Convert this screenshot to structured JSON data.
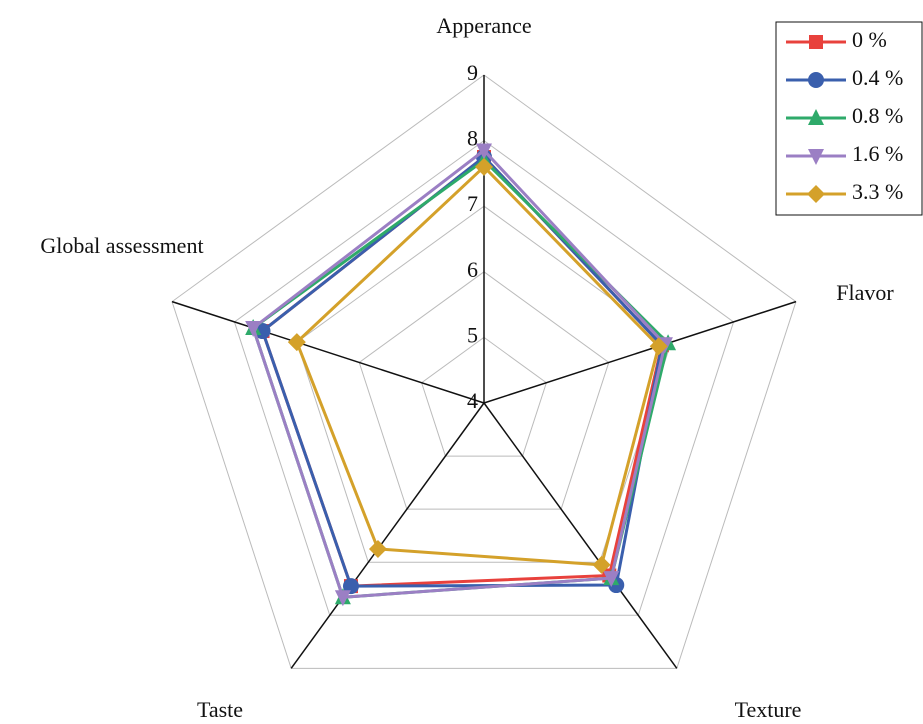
{
  "chart_data": {
    "type": "radar",
    "categories": [
      "Apperance",
      "Flavor",
      "Texture",
      "Taste",
      "Global assessment"
    ],
    "ylim": [
      4,
      9
    ],
    "yticks": [
      4,
      5,
      6,
      7,
      8,
      9
    ],
    "grid": true,
    "legend": "top-right",
    "series": [
      {
        "name": "0 %",
        "color": "#e8413c",
        "marker": "square",
        "values": [
          7.75,
          6.85,
          7.25,
          7.45,
          7.55
        ]
      },
      {
        "name": "0.4 %",
        "color": "#3a5fad",
        "marker": "circle",
        "values": [
          7.75,
          6.85,
          7.43,
          7.45,
          7.55
        ]
      },
      {
        "name": "0.8 %",
        "color": "#2eaa6a",
        "marker": "triangle-up",
        "values": [
          7.7,
          6.95,
          7.3,
          7.66,
          7.7
        ]
      },
      {
        "name": "1.6 %",
        "color": "#9b7fc4",
        "marker": "triangle-down",
        "values": [
          7.85,
          6.9,
          7.3,
          7.66,
          7.7
        ]
      },
      {
        "name": "3.3 %",
        "color": "#d4a12a",
        "marker": "diamond",
        "values": [
          7.6,
          6.8,
          7.05,
          6.75,
          7.0
        ]
      }
    ]
  }
}
